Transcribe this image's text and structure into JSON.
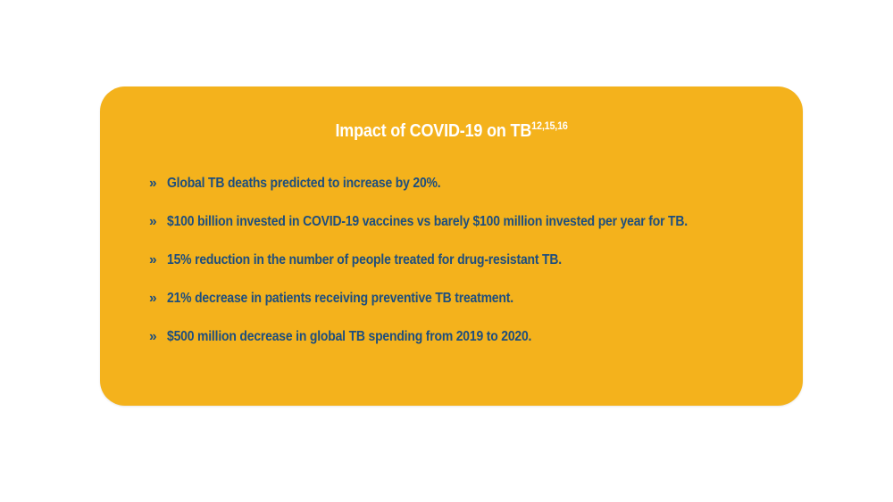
{
  "title": {
    "text": "Impact of COVID-19 on TB",
    "superscript": "12,15,16"
  },
  "bullet_marker": "»",
  "bullets": [
    "Global TB deaths predicted to increase by 20%.",
    "$100 billion invested in COVID-19 vaccines vs barely $100 million invested per year for TB.",
    "15% reduction in the number of people treated for drug-resistant TB.",
    "21% decrease in patients receiving preventive TB treatment.",
    "$500 million decrease in global TB spending from 2019 to 2020."
  ],
  "colors": {
    "card_background": "#F4B21C",
    "title_text": "#FFFFFF",
    "bullet_text": "#1D4E7E",
    "page_background": "#FFFFFF"
  }
}
